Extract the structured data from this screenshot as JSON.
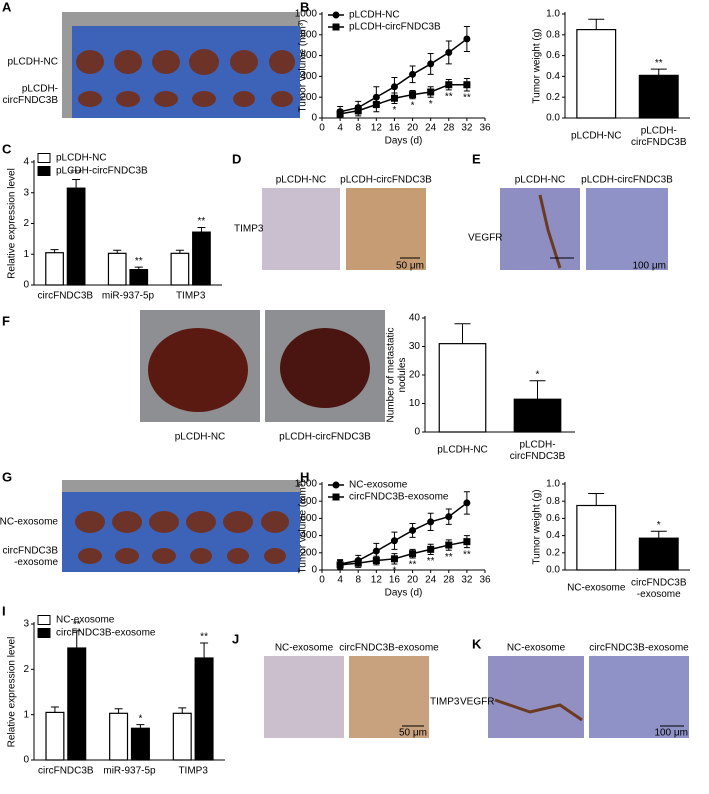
{
  "figure": {
    "panel_labels": [
      "A",
      "B",
      "C",
      "D",
      "E",
      "F",
      "G",
      "H",
      "I",
      "J",
      "K"
    ],
    "A": {
      "rows": [
        "pLCDH-NC",
        "pLCDH-\ncircFNDC3B"
      ]
    },
    "D": {
      "columns": [
        "pLCDH-NC",
        "pLCDH-circFNDC3B"
      ],
      "stain": "TIMP3",
      "scale_bar": "50 μm"
    },
    "E": {
      "columns": [
        "pLCDH-NC",
        "pLCDH-circFNDC3B"
      ],
      "stain": "VEGFR",
      "scale_bar": "100 μm"
    },
    "F": {
      "columns": [
        "pLCDH-NC",
        "pLCDH-circFNDC3B"
      ]
    },
    "G": {
      "rows": [
        "NC-exosome",
        "circFNDC3B\n-exosome"
      ]
    },
    "J": {
      "columns": [
        "NC-exosome",
        "circFNDC3B-exosome"
      ],
      "stain": "TIMP3",
      "scale_bar": "50 μm"
    },
    "K": {
      "columns": [
        "NC-exosome",
        "circFNDC3B-exosome"
      ],
      "stain": "VEGFR",
      "scale_bar": "100 μm"
    }
  },
  "chart_data": [
    {
      "type": "line",
      "ylabel": "Tumor volume (mm³)",
      "xlabel": "Days (d)",
      "x": [
        4,
        8,
        12,
        16,
        20,
        24,
        28,
        32
      ],
      "xlim": [
        0,
        36
      ],
      "xticks": [
        0,
        4,
        8,
        12,
        16,
        20,
        24,
        28,
        32,
        36
      ],
      "ylim": [
        0,
        1000
      ],
      "yticks": [
        0,
        200,
        400,
        600,
        800,
        1000
      ],
      "legend": "upper left",
      "series": [
        {
          "name": "pLCDH-NC",
          "color": "#000000",
          "marker": "circle",
          "values": [
            60,
            100,
            200,
            300,
            420,
            520,
            630,
            760
          ],
          "errors": [
            50,
            60,
            100,
            90,
            80,
            100,
            110,
            120
          ]
        },
        {
          "name": "pLCDH-circFNDC3B",
          "color": "#000000",
          "marker": "square",
          "values": [
            40,
            70,
            130,
            190,
            225,
            250,
            320,
            320
          ],
          "errors": [
            40,
            50,
            70,
            50,
            40,
            50,
            50,
            60
          ],
          "significance": [
            null,
            null,
            null,
            "*",
            "*",
            "*",
            "**",
            "**"
          ]
        }
      ]
    },
    {
      "type": "bar",
      "ylabel": "Tumor weight (g)",
      "categories": [
        "pLCDH-NC",
        "pLCDH-\ncircFNDC3B"
      ],
      "values": [
        0.85,
        0.41
      ],
      "errors": [
        0.1,
        0.06
      ],
      "colors": [
        "#ffffff",
        "#000000"
      ],
      "significance": [
        null,
        "**"
      ],
      "ylim": [
        0,
        1
      ],
      "yticks": [
        {
          "value": 0,
          "label": "0.0"
        },
        {
          "value": 0.2,
          "label": "0.2"
        },
        {
          "value": 0.4,
          "label": "0.4"
        },
        {
          "value": 0.6,
          "label": "0.6"
        },
        {
          "value": 0.8,
          "label": "0.8"
        },
        {
          "value": 1,
          "label": "1.0"
        }
      ]
    },
    {
      "type": "grouped_bar",
      "ylabel": "Relative expression level",
      "categories": [
        "circFNDC3B",
        "miR-937-5p",
        "TIMP3"
      ],
      "ylim": [
        0,
        4
      ],
      "yticks": [
        0,
        1,
        2,
        3,
        4
      ],
      "legend": "upper left",
      "series": [
        {
          "name": "pLCDH-NC",
          "color": "#ffffff",
          "values": [
            1.05,
            1.03,
            1.03
          ],
          "errors": [
            0.1,
            0.1,
            0.1
          ]
        },
        {
          "name": "pLCDH-circFNDC3B",
          "color": "#000000",
          "values": [
            3.15,
            0.5,
            1.72
          ],
          "errors": [
            0.28,
            0.08,
            0.15
          ],
          "significance": [
            "***",
            "**",
            "**"
          ]
        }
      ]
    },
    {
      "type": "bar",
      "ylabel": "Number of metastatic\nnodules",
      "categories": [
        "pLCDH-NC",
        "pLCDH-\ncircFNDC3B"
      ],
      "values": [
        31,
        11.5
      ],
      "errors": [
        7,
        6.5
      ],
      "colors": [
        "#ffffff",
        "#000000"
      ],
      "significance": [
        null,
        "*"
      ],
      "ylim": [
        0,
        40
      ],
      "yticks": [
        0,
        10,
        20,
        30,
        40
      ]
    },
    {
      "type": "line",
      "ylabel": "Tumor volume (mm³)",
      "xlabel": "Days (d)",
      "x": [
        4,
        8,
        12,
        16,
        20,
        24,
        28,
        32
      ],
      "xlim": [
        0,
        36
      ],
      "xticks": [
        0,
        4,
        8,
        12,
        16,
        20,
        24,
        28,
        32,
        36
      ],
      "ylim": [
        0,
        1000
      ],
      "yticks": [
        0,
        200,
        400,
        600,
        800,
        1000
      ],
      "legend": "upper left",
      "series": [
        {
          "name": "NC-exosome",
          "color": "#000000",
          "marker": "circle",
          "values": [
            70,
            110,
            220,
            340,
            460,
            560,
            620,
            780
          ],
          "errors": [
            50,
            60,
            90,
            100,
            80,
            100,
            90,
            130
          ]
        },
        {
          "name": "circFNDC3B-exosome",
          "color": "#000000",
          "marker": "square",
          "values": [
            60,
            80,
            110,
            130,
            190,
            240,
            290,
            330
          ],
          "errors": [
            50,
            50,
            50,
            60,
            50,
            60,
            60,
            70
          ],
          "significance": [
            null,
            null,
            null,
            "*",
            "**",
            "**",
            "**",
            "**"
          ]
        }
      ]
    },
    {
      "type": "bar",
      "ylabel": "Tumor weight (g)",
      "categories": [
        "NC-exosome",
        "circFNDC3B\n-exosome"
      ],
      "values": [
        0.75,
        0.37
      ],
      "errors": [
        0.14,
        0.08
      ],
      "colors": [
        "#ffffff",
        "#000000"
      ],
      "significance": [
        null,
        "*"
      ],
      "ylim": [
        0,
        1
      ],
      "yticks": [
        {
          "value": 0,
          "label": "0.0"
        },
        {
          "value": 0.2,
          "label": "0.2"
        },
        {
          "value": 0.4,
          "label": "0.4"
        },
        {
          "value": 0.6,
          "label": "0.6"
        },
        {
          "value": 0.8,
          "label": "0.8"
        },
        {
          "value": 1,
          "label": "1.0"
        }
      ]
    },
    {
      "type": "grouped_bar",
      "ylabel": "Relative expression level",
      "categories": [
        "circFNDC3B",
        "miR-937-5p",
        "TIMP3"
      ],
      "ylim": [
        0,
        3
      ],
      "yticks": [
        0,
        1,
        2,
        3
      ],
      "legend": "upper left",
      "series": [
        {
          "name": "NC-exosome",
          "color": "#ffffff",
          "values": [
            1.05,
            1.03,
            1.03
          ],
          "errors": [
            0.12,
            0.1,
            0.12
          ]
        },
        {
          "name": "circFNDC3B-exosome",
          "color": "#000000",
          "values": [
            2.47,
            0.7,
            2.25
          ],
          "errors": [
            0.38,
            0.08,
            0.33
          ],
          "significance": [
            "**",
            "*",
            "**"
          ]
        }
      ]
    }
  ]
}
